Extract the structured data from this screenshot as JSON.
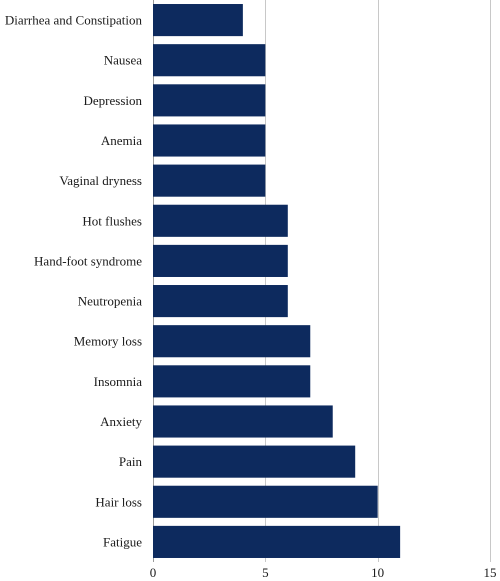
{
  "chart_data": {
    "type": "bar",
    "orientation": "horizontal",
    "categories": [
      "Diarrhea and Constipation",
      "Nausea",
      "Depression",
      "Anemia",
      "Vaginal dryness",
      "Hot flushes",
      "Hand-foot syndrome",
      "Neutropenia",
      "Memory loss",
      "Insomnia",
      "Anxiety",
      "Pain",
      "Hair loss",
      "Fatigue"
    ],
    "values": [
      4,
      5,
      5,
      5,
      5,
      6,
      6,
      6,
      7,
      7,
      8,
      9,
      10,
      11
    ],
    "xlim": [
      0,
      15
    ],
    "xticks": [
      0,
      5,
      10,
      15
    ],
    "grid": true,
    "bar_color": "#0d2a5e",
    "title": "",
    "xlabel": "",
    "ylabel": ""
  }
}
